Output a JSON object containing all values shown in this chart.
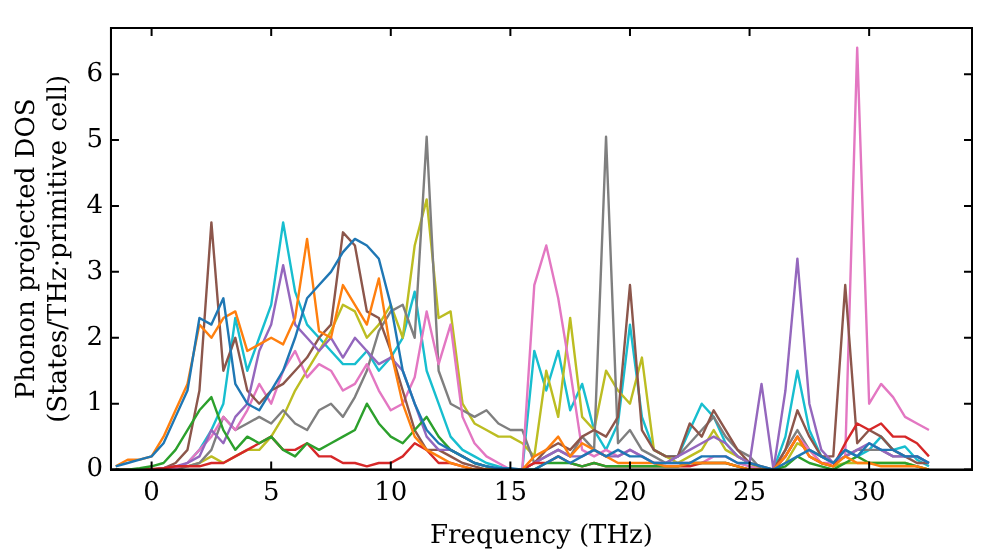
{
  "chart_data": {
    "type": "line",
    "xlabel": "Frequency (THz)",
    "ylabel": "Phonon projected DOS\n(States/THz·primitive cell)",
    "xlim": [
      -1.7,
      34.3
    ],
    "ylim": [
      0,
      6.7
    ],
    "xticks": [
      0,
      5,
      10,
      15,
      20,
      25,
      30
    ],
    "yticks": [
      0,
      1,
      2,
      3,
      4,
      5,
      6
    ],
    "grid": false,
    "legend": false,
    "marker": "none",
    "line_style": "solid",
    "x": [
      -1.5,
      -1,
      -0.5,
      0,
      0.5,
      1,
      1.5,
      2,
      2.5,
      3,
      3.5,
      4,
      4.5,
      5,
      5.5,
      6,
      6.5,
      7,
      7.5,
      8,
      8.5,
      9,
      9.5,
      10,
      10.5,
      11,
      11.5,
      12,
      12.5,
      13,
      13.5,
      14,
      14.5,
      15,
      15.5,
      16,
      16.5,
      17,
      17.5,
      18,
      18.5,
      19,
      19.5,
      20,
      20.5,
      21,
      21.5,
      22,
      22.5,
      23,
      23.5,
      24,
      24.5,
      25,
      25.5,
      26,
      26.5,
      27,
      27.5,
      28,
      28.5,
      29,
      29.5,
      30,
      30.5,
      31,
      31.5,
      32,
      32.5
    ],
    "series": [
      {
        "color": "#1f77b4",
        "values": [
          0.05,
          0.1,
          0.15,
          0.2,
          0.4,
          0.8,
          1.2,
          2.3,
          2.2,
          2.6,
          1.3,
          1.0,
          0.9,
          1.2,
          1.5,
          2.0,
          2.6,
          2.8,
          3.0,
          3.3,
          3.5,
          3.4,
          3.2,
          2.5,
          1.5,
          1.0,
          0.6,
          0.4,
          0.3,
          0.2,
          0.1,
          0.05,
          0.02,
          0.02,
          0,
          0,
          0.1,
          0.2,
          0.1,
          0.2,
          0.3,
          0.2,
          0.3,
          0.2,
          0.2,
          0.1,
          0.1,
          0.1,
          0.1,
          0.2,
          0.2,
          0.2,
          0.1,
          0.1,
          0.05,
          0,
          0.1,
          0.2,
          0.3,
          0.2,
          0.1,
          0.3,
          0.2,
          0.4,
          0.3,
          0.3,
          0.2,
          0.2,
          0.1
        ]
      },
      {
        "color": "#ff7f0e",
        "values": [
          0.05,
          0.15,
          0.15,
          0.2,
          0.5,
          0.9,
          1.3,
          2.2,
          2.0,
          2.3,
          2.4,
          1.8,
          1.9,
          2.0,
          1.9,
          2.3,
          3.5,
          2.1,
          2.0,
          2.8,
          2.5,
          2.2,
          2.9,
          1.8,
          1.0,
          0.5,
          0.3,
          0.2,
          0.1,
          0.05,
          0,
          0,
          0,
          0,
          0,
          0.2,
          0.3,
          0.5,
          0.2,
          0.4,
          0.3,
          0.2,
          0.1,
          0.1,
          0.1,
          0.1,
          0.05,
          0.05,
          0.1,
          0.1,
          0.1,
          0.1,
          0.05,
          0,
          0,
          0,
          0.2,
          0.5,
          0.2,
          0.1,
          0.05,
          0.2,
          0.1,
          0.1,
          0.05,
          0.05,
          0.05,
          0.05,
          0
        ]
      },
      {
        "color": "#2ca02c",
        "values": [
          0,
          0,
          0.02,
          0.05,
          0.1,
          0.3,
          0.6,
          0.9,
          1.1,
          0.6,
          0.3,
          0.5,
          0.4,
          0.5,
          0.3,
          0.2,
          0.4,
          0.3,
          0.4,
          0.5,
          0.6,
          1.0,
          0.7,
          0.5,
          0.4,
          0.6,
          0.8,
          0.5,
          0.3,
          0.2,
          0.1,
          0.05,
          0,
          0,
          0,
          0,
          0.1,
          0.1,
          0.1,
          0.05,
          0.1,
          0.05,
          0.05,
          0.05,
          0.05,
          0.05,
          0.05,
          0.05,
          0.1,
          0.1,
          0.1,
          0.1,
          0.05,
          0,
          0,
          0,
          0.05,
          0.2,
          0.1,
          0.05,
          0,
          0.1,
          0.2,
          0.1,
          0.1,
          0.1,
          0.1,
          0.05,
          0
        ]
      },
      {
        "color": "#d62728",
        "values": [
          0,
          0,
          0,
          0.01,
          0.02,
          0.05,
          0.05,
          0.05,
          0.1,
          0.1,
          0.2,
          0.3,
          0.4,
          0.5,
          0.3,
          0.3,
          0.4,
          0.2,
          0.2,
          0.1,
          0.1,
          0.05,
          0.1,
          0.1,
          0.2,
          0.4,
          0.3,
          0.1,
          0.1,
          0.05,
          0,
          0,
          0,
          0,
          0,
          0.1,
          0.1,
          0.2,
          0.1,
          0.05,
          0.1,
          0.05,
          0.05,
          0.05,
          0.05,
          0.05,
          0.05,
          0.05,
          0.05,
          0.1,
          0.1,
          0.1,
          0.05,
          0,
          0,
          0,
          0.2,
          0.5,
          0.2,
          0.1,
          0.05,
          0.4,
          0.7,
          0.6,
          0.7,
          0.5,
          0.5,
          0.4,
          0.2
        ]
      },
      {
        "color": "#9467bd",
        "values": [
          0,
          0,
          0,
          0,
          0.02,
          0.05,
          0.1,
          0.2,
          0.6,
          0.4,
          0.8,
          1.0,
          1.8,
          2.2,
          3.1,
          2.2,
          2.0,
          1.8,
          2.0,
          1.7,
          2.0,
          1.8,
          1.6,
          1.7,
          1.5,
          1.0,
          0.5,
          0.3,
          0.3,
          0.2,
          0.1,
          0.05,
          0,
          0,
          0,
          0.1,
          0.2,
          0.3,
          0.2,
          0.2,
          0.3,
          0.2,
          0.2,
          0.3,
          0.2,
          0.1,
          0.1,
          0.2,
          0.3,
          0.4,
          0.5,
          0.4,
          0.2,
          0.1,
          1.3,
          0,
          1.2,
          3.2,
          1.0,
          0.3,
          0.1,
          0.2,
          0.3,
          0.4,
          0.3,
          0.2,
          0.2,
          0.2,
          0.1
        ]
      },
      {
        "color": "#8c564b",
        "values": [
          0,
          0,
          0,
          0,
          0.02,
          0.1,
          0.3,
          1.2,
          3.75,
          1.5,
          2.0,
          1.2,
          1.0,
          1.2,
          1.3,
          1.5,
          1.7,
          2.0,
          2.2,
          3.6,
          3.4,
          2.4,
          2.3,
          1.8,
          1.2,
          0.6,
          0.3,
          0.3,
          0.2,
          0.1,
          0.05,
          0,
          0,
          0,
          0,
          0.1,
          0.3,
          0.4,
          0.3,
          0.5,
          0.6,
          0.5,
          0.8,
          2.8,
          0.6,
          0.3,
          0.2,
          0.2,
          0.7,
          0.5,
          0.9,
          0.6,
          0.3,
          0.1,
          0.05,
          0,
          0.3,
          0.9,
          0.5,
          0.2,
          0.2,
          2.8,
          0.4,
          0.6,
          0.5,
          0.3,
          0.2,
          0.1,
          0.1
        ]
      },
      {
        "color": "#e377c2",
        "values": [
          null,
          null,
          null,
          0,
          0,
          0.02,
          0.1,
          0.3,
          0.5,
          0.8,
          0.6,
          0.9,
          1.3,
          1.0,
          1.5,
          1.8,
          1.4,
          1.6,
          1.5,
          1.2,
          1.3,
          1.6,
          1.2,
          0.9,
          1.0,
          1.4,
          2.4,
          1.6,
          2.2,
          0.8,
          0.4,
          0.2,
          0.1,
          0,
          0,
          2.8,
          3.4,
          2.6,
          1.5,
          0.3,
          0.2,
          0.3,
          0.2,
          0.3,
          0.2,
          0.1,
          0.1,
          0.1,
          0.1,
          0.1,
          0.2,
          0.2,
          0.1,
          0.05,
          0,
          0,
          0.2,
          0.5,
          0.3,
          0.1,
          0.1,
          0.2,
          6.4,
          1.0,
          1.3,
          1.1,
          0.8,
          0.7,
          0.6
        ]
      },
      {
        "color": "#7f7f7f",
        "values": [
          0,
          0,
          0,
          0,
          0,
          0,
          0.05,
          0.1,
          0.3,
          0.8,
          0.6,
          0.7,
          0.8,
          0.7,
          0.9,
          0.7,
          0.6,
          0.9,
          1.0,
          0.8,
          1.1,
          1.5,
          2.1,
          2.4,
          2.5,
          2.0,
          5.05,
          1.5,
          1.0,
          0.9,
          0.8,
          0.9,
          0.7,
          0.6,
          0.6,
          0.1,
          0.2,
          0.3,
          0.2,
          0.5,
          0.3,
          5.05,
          0.4,
          0.6,
          0.3,
          0.2,
          0.1,
          0.2,
          0.4,
          0.6,
          0.8,
          0.5,
          0.3,
          0.2,
          0,
          0,
          0.3,
          0.6,
          0.3,
          0.2,
          0.1,
          0.2,
          0.3,
          0.3,
          0.3,
          0.2,
          0.2,
          0.2,
          0.1
        ]
      },
      {
        "color": "#bcbd22",
        "values": [
          null,
          null,
          null,
          null,
          null,
          null,
          0.05,
          0.1,
          0.2,
          0.1,
          0.2,
          0.3,
          0.3,
          0.5,
          0.8,
          1.2,
          1.5,
          1.8,
          2.1,
          2.5,
          2.4,
          2.0,
          2.2,
          2.5,
          2.0,
          3.4,
          4.1,
          2.3,
          2.4,
          1.0,
          0.7,
          0.6,
          0.5,
          0.5,
          0.4,
          0.2,
          1.5,
          0.8,
          2.3,
          0.8,
          0.6,
          1.5,
          1.2,
          1.0,
          1.7,
          0.3,
          0.2,
          0.1,
          0.2,
          0.3,
          0.6,
          0.3,
          0.2,
          0.1,
          0,
          0,
          0.1,
          0.4,
          0.3,
          0.1,
          0.05,
          0.1,
          0.1,
          0.1,
          0.1,
          0.1,
          0.1,
          0.05,
          0
        ]
      },
      {
        "color": "#17becf",
        "values": [
          null,
          null,
          null,
          null,
          null,
          null,
          0.1,
          0.3,
          0.6,
          1.0,
          2.3,
          1.5,
          2.0,
          2.5,
          3.75,
          2.7,
          2.2,
          2.0,
          1.8,
          1.6,
          1.6,
          1.8,
          1.5,
          1.7,
          2.0,
          2.7,
          1.5,
          1.0,
          0.5,
          0.3,
          0.2,
          0.1,
          0.05,
          0,
          0,
          1.8,
          1.2,
          1.8,
          0.9,
          1.3,
          0.6,
          0.3,
          0.7,
          2.2,
          0.8,
          0.3,
          0.2,
          0.2,
          0.6,
          1.0,
          0.8,
          0.4,
          0.2,
          0.1,
          0,
          0,
          0.5,
          1.5,
          0.6,
          0.2,
          0.1,
          0.3,
          0.2,
          0.3,
          0.5,
          0.3,
          0.35,
          0.15,
          0.05
        ]
      }
    ]
  }
}
